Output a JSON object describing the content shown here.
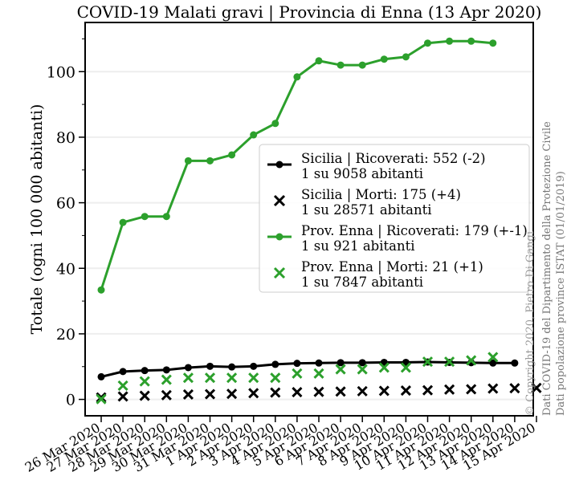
{
  "chart_data": {
    "type": "line",
    "title": "COVID-19 Malati gravi | Provincia di Enna (13 Apr 2020)",
    "ylabel": "Totale (ogni 100 000 abitanti)",
    "xlabel": "",
    "ylim": [
      -5,
      115
    ],
    "yticks": [
      0,
      20,
      40,
      60,
      80,
      100
    ],
    "grid": true,
    "legend_position": "center-right",
    "categories": [
      "26 Mar 2020",
      "27 Mar 2020",
      "28 Mar 2020",
      "29 Mar 2020",
      "30 Mar 2020",
      "31 Mar 2020",
      "1 Apr 2020",
      "2 Apr 2020",
      "3 Apr 2020",
      "4 Apr 2020",
      "5 Apr 2020",
      "6 Apr 2020",
      "7 Apr 2020",
      "8 Apr 2020",
      "9 Apr 2020",
      "10 Apr 2020",
      "11 Apr 2020",
      "12 Apr 2020",
      "13 Apr 2020",
      "14 Apr 2020",
      "15 Apr 2020"
    ],
    "series": [
      {
        "name": "Sicilia | Ricoverati: 552 (-2)",
        "name_line2": "1 su 9058 abitanti",
        "color": "#000000",
        "marker": "dot-line",
        "values": [
          6.9,
          8.5,
          8.8,
          9.0,
          9.7,
          10.1,
          9.9,
          10.1,
          10.7,
          11.0,
          11.1,
          11.2,
          11.2,
          11.3,
          11.3,
          11.4,
          11.3,
          11.2,
          11.1,
          11.1,
          null
        ]
      },
      {
        "name": "Sicilia | Morti: 175 (+4)",
        "name_line2": "1 su 28571 abitanti",
        "color": "#000000",
        "marker": "x",
        "values": [
          0.6,
          0.9,
          1.1,
          1.3,
          1.5,
          1.6,
          1.7,
          1.9,
          2.1,
          2.2,
          2.3,
          2.4,
          2.5,
          2.6,
          2.7,
          2.8,
          3.0,
          3.1,
          3.3,
          3.4,
          3.5
        ]
      },
      {
        "name": "Prov. Enna | Ricoverati: 179 (+-1)",
        "name_line2": "1 su 921 abitanti",
        "color": "#2ca02c",
        "marker": "dot-line",
        "values": [
          33.4,
          54.0,
          55.8,
          55.8,
          72.8,
          72.8,
          74.6,
          80.7,
          84.2,
          98.4,
          103.3,
          102.0,
          102.0,
          103.8,
          104.5,
          108.7,
          109.3,
          109.3,
          108.7,
          null,
          null
        ]
      },
      {
        "name": "Prov. Enna | Morti: 21 (+1)",
        "name_line2": "1 su 7847 abitanti",
        "color": "#2ca02c",
        "marker": "x",
        "values": [
          0.1,
          4.2,
          5.5,
          6.0,
          6.6,
          6.6,
          6.6,
          6.6,
          6.6,
          7.9,
          7.9,
          9.2,
          9.2,
          9.7,
          9.7,
          11.5,
          11.5,
          11.9,
          12.9,
          null,
          null
        ]
      }
    ]
  },
  "side_notes": [
    "© Copyright 2020, Pietro Di Gangi",
    "Dati COVID-19 del Dipartimento della Protezione Civile",
    "Dati popolazione province ISTAT (01/01/2019)"
  ]
}
